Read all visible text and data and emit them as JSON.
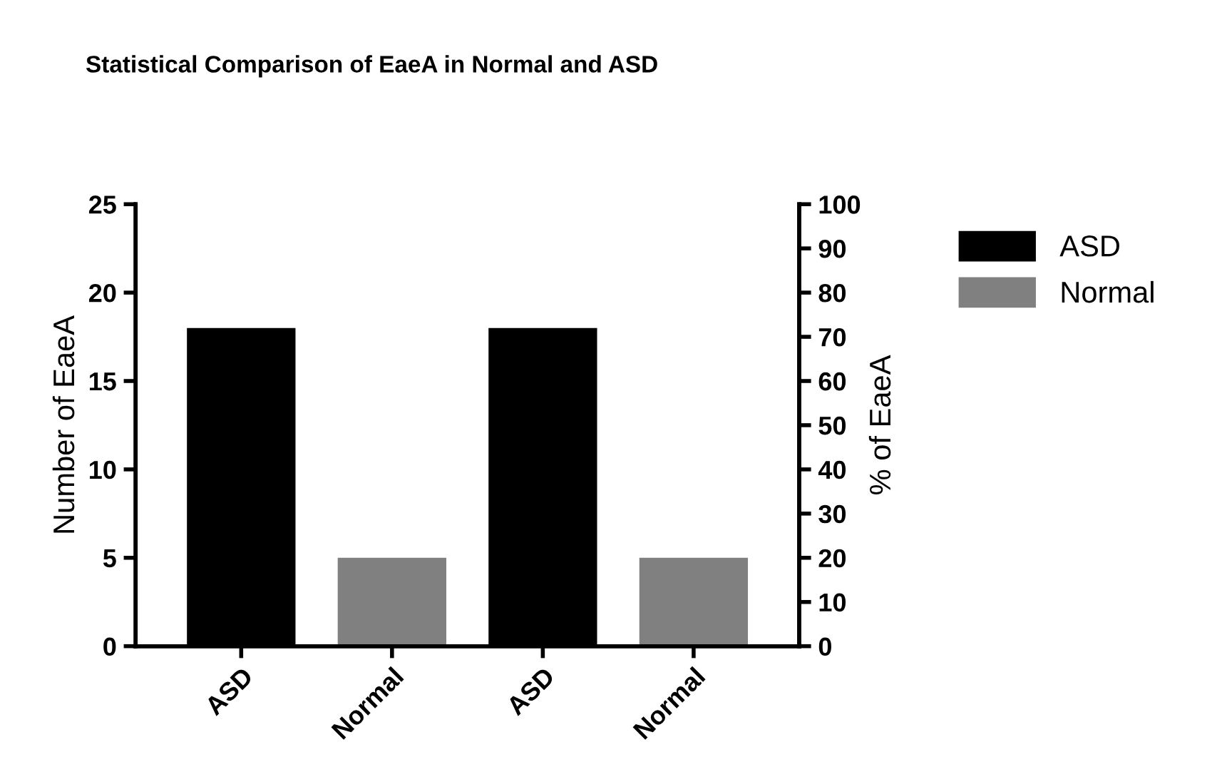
{
  "chart_data": {
    "type": "bar",
    "title": "Statistical Comparison of EaeA in Normal and ASD",
    "categories": [
      "ASD",
      "Normal",
      "ASD",
      "Normal"
    ],
    "series": [
      {
        "name": "ASD",
        "color": "#000000",
        "values": [
          18,
          null,
          null,
          null
        ]
      },
      {
        "name": "Normal",
        "color": "#808080",
        "values": [
          null,
          5,
          null,
          null
        ]
      },
      {
        "color": "#000000",
        "axis": "y2",
        "values": [
          null,
          null,
          72,
          null
        ]
      },
      {
        "color": "#808080",
        "axis": "y2",
        "values": [
          null,
          null,
          null,
          20
        ]
      }
    ],
    "ylabel": "Number of EaeA",
    "y2label": "% of EaeA",
    "ylim": [
      0,
      25
    ],
    "yticks": [
      0,
      5,
      10,
      15,
      20,
      25
    ],
    "y2lim": [
      0,
      100
    ],
    "y2ticks": [
      0,
      10,
      20,
      30,
      40,
      50,
      60,
      70,
      80,
      90,
      100
    ],
    "legend": "right",
    "grid": false
  }
}
